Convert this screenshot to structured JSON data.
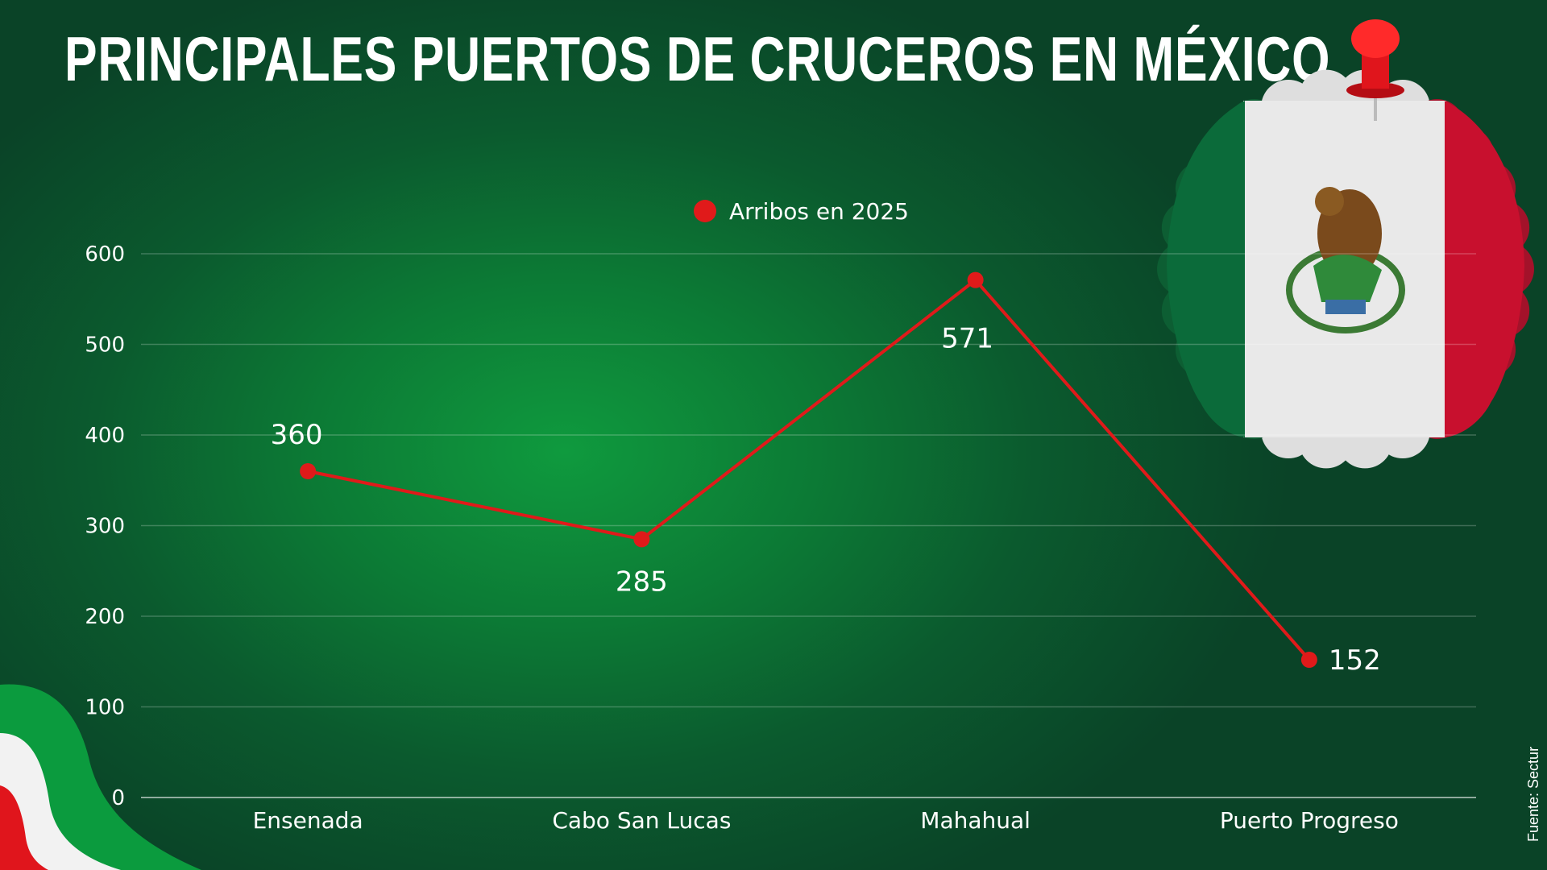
{
  "title": "PRINCIPALES PUERTOS DE CRUCEROS EN MÉXICO",
  "source": "Fuente: Sectur",
  "colors": {
    "background": "#0c7a35",
    "line": "#e01a1a",
    "text": "#ffffff",
    "flag_green": "#0b6b3a",
    "flag_red": "#c8102e"
  },
  "chart_data": {
    "type": "line",
    "title": "PRINCIPALES PUERTOS DE CRUCEROS EN MÉXICO",
    "categories": [
      "Ensenada",
      "Cabo San Lucas",
      "Mahahual",
      "Puerto Progreso"
    ],
    "series": [
      {
        "name": "Arribos en 2025",
        "values": [
          360,
          285,
          571,
          152
        ],
        "color": "#e01a1a"
      }
    ],
    "yticks": [
      0,
      100,
      200,
      300,
      400,
      500,
      600
    ],
    "ylim": [
      0,
      600
    ],
    "xlabel": "",
    "ylabel": "",
    "grid": true,
    "legend_position": "top-center",
    "data_labels": [
      "360",
      "285",
      "571",
      "152"
    ]
  }
}
